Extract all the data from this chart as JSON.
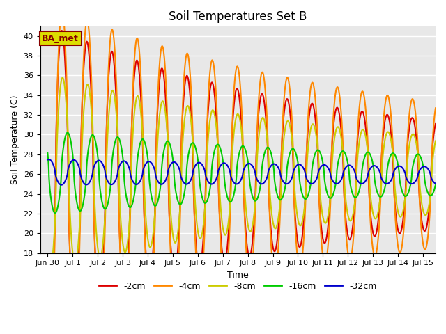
{
  "title": "Soil Temperatures Set B",
  "xlabel": "Time",
  "ylabel": "Soil Temperature (C)",
  "ylim": [
    18,
    41
  ],
  "yticks": [
    18,
    20,
    22,
    24,
    26,
    28,
    30,
    32,
    34,
    36,
    38,
    40
  ],
  "annotation_text": "BA_met",
  "annotation_box_facecolor": "#dddd00",
  "annotation_box_edgecolor": "#880000",
  "annotation_text_color": "#880000",
  "legend_labels": [
    "-2cm",
    "-4cm",
    "-8cm",
    "-16cm",
    "-32cm"
  ],
  "line_colors": [
    "#dd0000",
    "#ff8800",
    "#cccc00",
    "#00cc00",
    "#0000cc"
  ],
  "x_tick_labels": [
    "Jun 30",
    "Jul 1",
    "Jul 2",
    "Jul 3",
    "Jul 4",
    "Jul 5",
    "Jul 6",
    "Jul 7",
    "Jul 8",
    "Jul 9",
    "Jul 10",
    "Jul 11",
    "Jul 12",
    "Jul 13",
    "Jul 14",
    "Jul 15"
  ],
  "x_tick_positions": [
    0,
    1,
    2,
    3,
    4,
    5,
    6,
    7,
    8,
    9,
    10,
    11,
    12,
    13,
    14,
    15
  ],
  "bg_color": "#e8e8e8"
}
